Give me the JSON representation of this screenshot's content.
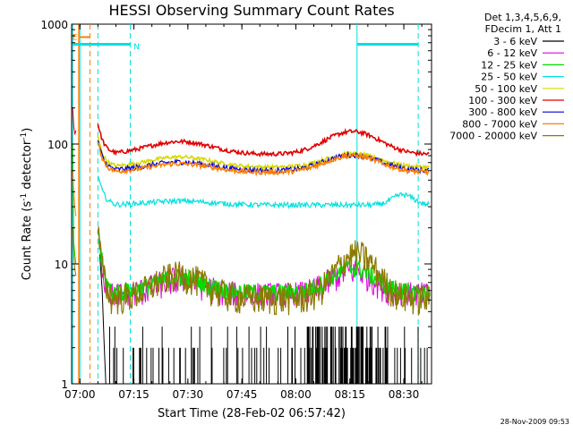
{
  "chart_data": {
    "type": "line",
    "title": "HESSI Observing Summary Count Rates",
    "xlabel": "Start Time (28-Feb-02 06:57:42)",
    "ylabel_main": "Count Rate (s",
    "ylabel_sup1": "-1",
    "ylabel_mid": " detector",
    "ylabel_sup2": "-1",
    "ylabel_end": ")",
    "x_unit": "minutes after 06:57:42",
    "xlim": [
      0,
      100
    ],
    "ylim": [
      1,
      1000
    ],
    "y_scale": "log",
    "x_ticks": [
      {
        "t": 2.3,
        "label": "07:00"
      },
      {
        "t": 17.3,
        "label": "07:15"
      },
      {
        "t": 32.3,
        "label": "07:30"
      },
      {
        "t": 47.3,
        "label": "07:45"
      },
      {
        "t": 62.3,
        "label": "08:00"
      },
      {
        "t": 77.3,
        "label": "08:15"
      },
      {
        "t": 92.3,
        "label": "08:30"
      }
    ],
    "y_ticks": [
      {
        "v": 1,
        "label": "1"
      },
      {
        "v": 10,
        "label": "10"
      },
      {
        "v": 100,
        "label": "100"
      },
      {
        "v": 1000,
        "label": "1000"
      }
    ],
    "legend_header": [
      "Det 1,3,4,5,6,9,",
      "FDecim 1, Att 1"
    ],
    "series": [
      {
        "name": "3 - 6 keV",
        "color": "#000000"
      },
      {
        "name": "6 - 12 keV",
        "color": "#e000e0"
      },
      {
        "name": "12 - 25 keV",
        "color": "#00e000"
      },
      {
        "name": "25 - 50 keV",
        "color": "#00e0e0"
      },
      {
        "name": "50 - 100 keV",
        "color": "#d8d800"
      },
      {
        "name": "100 - 300 keV",
        "color": "#e00000"
      },
      {
        "name": "300 - 800 keV",
        "color": "#0000e0"
      },
      {
        "name": "800 - 7000 keV",
        "color": "#ff8000"
      },
      {
        "name": "7000 - 20000 keV",
        "color": "#8b7a00"
      }
    ],
    "flags": [
      {
        "label": "E",
        "color": "#ff8000"
      },
      {
        "label": "N",
        "color": "#00e0e0"
      }
    ],
    "timestamp": "28-Nov-2009 09:53"
  }
}
